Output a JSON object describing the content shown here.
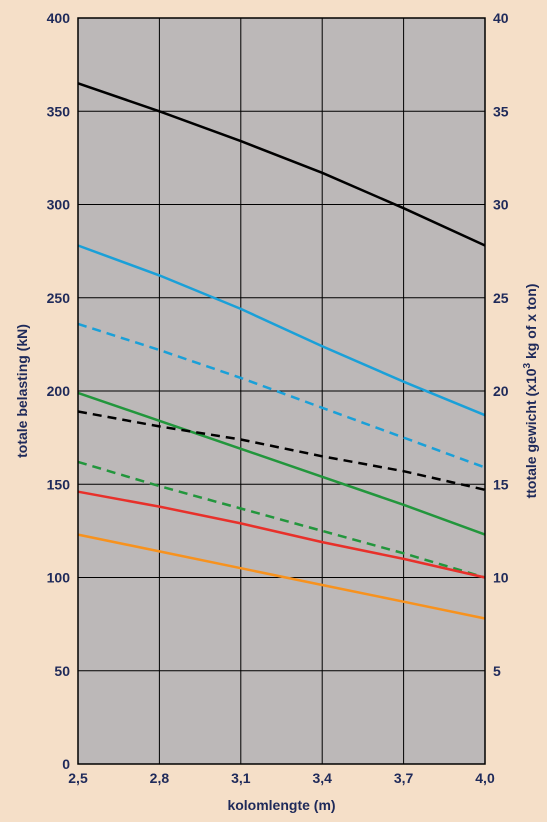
{
  "chart_data": {
    "type": "line",
    "title": "",
    "xlabel": "kolomlengte (m)",
    "ylabel_left": "totale belasting (kN)",
    "ylabel_right_prefix": "ttotale gewicht (x10",
    "ylabel_right_sup": "3",
    "ylabel_right_suffix": " kg of x ton)",
    "xlim": [
      2.5,
      4.0
    ],
    "ylim": [
      0,
      400
    ],
    "ylim_right": [
      0,
      40
    ],
    "x_ticks": [
      "2,5",
      "2,8",
      "3,1",
      "3,4",
      "3,7",
      "4,0"
    ],
    "x_tick_values": [
      2.5,
      2.8,
      3.1,
      3.4,
      3.7,
      4.0
    ],
    "y_ticks": [
      0,
      50,
      100,
      150,
      200,
      250,
      300,
      350,
      400
    ],
    "y_ticks_right": [
      5,
      10,
      15,
      20,
      25,
      30,
      35,
      40
    ],
    "grid": true,
    "legend": "none",
    "colors": {
      "background": "#f5dfc8",
      "plot_area": "#bcb8b8",
      "text": "#1f2a5a",
      "grid": "#000000"
    },
    "series": [
      {
        "color": "#000000",
        "style": "solid",
        "x": [
          2.5,
          2.8,
          3.1,
          3.4,
          3.7,
          4.0
        ],
        "values": [
          365,
          350,
          334,
          317,
          298,
          278
        ]
      },
      {
        "color": "#1aa0d8",
        "style": "solid",
        "x": [
          2.5,
          2.8,
          3.1,
          3.4,
          3.7,
          4.0
        ],
        "values": [
          278,
          262,
          244,
          224,
          205,
          187
        ]
      },
      {
        "color": "#1aa0d8",
        "style": "dashed",
        "x": [
          2.5,
          2.8,
          3.1,
          3.4,
          3.7,
          4.0
        ],
        "values": [
          236,
          222,
          207,
          191,
          175,
          159
        ]
      },
      {
        "color": "#22963c",
        "style": "solid",
        "x": [
          2.5,
          2.8,
          3.1,
          3.4,
          3.7,
          4.0
        ],
        "values": [
          199,
          184,
          169,
          154,
          139,
          123
        ]
      },
      {
        "color": "#000000",
        "style": "dashed",
        "x": [
          2.5,
          2.8,
          3.1,
          3.4,
          3.7,
          4.0
        ],
        "values": [
          189,
          181,
          174,
          165,
          157,
          147
        ]
      },
      {
        "color": "#22963c",
        "style": "dashed",
        "x": [
          2.5,
          2.8,
          3.1,
          3.4,
          3.7,
          4.0
        ],
        "values": [
          162,
          149,
          137,
          125,
          113,
          100
        ]
      },
      {
        "color": "#e8302a",
        "style": "solid",
        "x": [
          2.5,
          2.8,
          3.1,
          3.4,
          3.7,
          4.0
        ],
        "values": [
          146,
          138,
          129,
          119,
          110,
          100
        ]
      },
      {
        "color": "#f7921e",
        "style": "solid",
        "x": [
          2.5,
          2.8,
          3.1,
          3.4,
          3.7,
          4.0
        ],
        "values": [
          123,
          114,
          105,
          96,
          87,
          78
        ]
      }
    ]
  }
}
